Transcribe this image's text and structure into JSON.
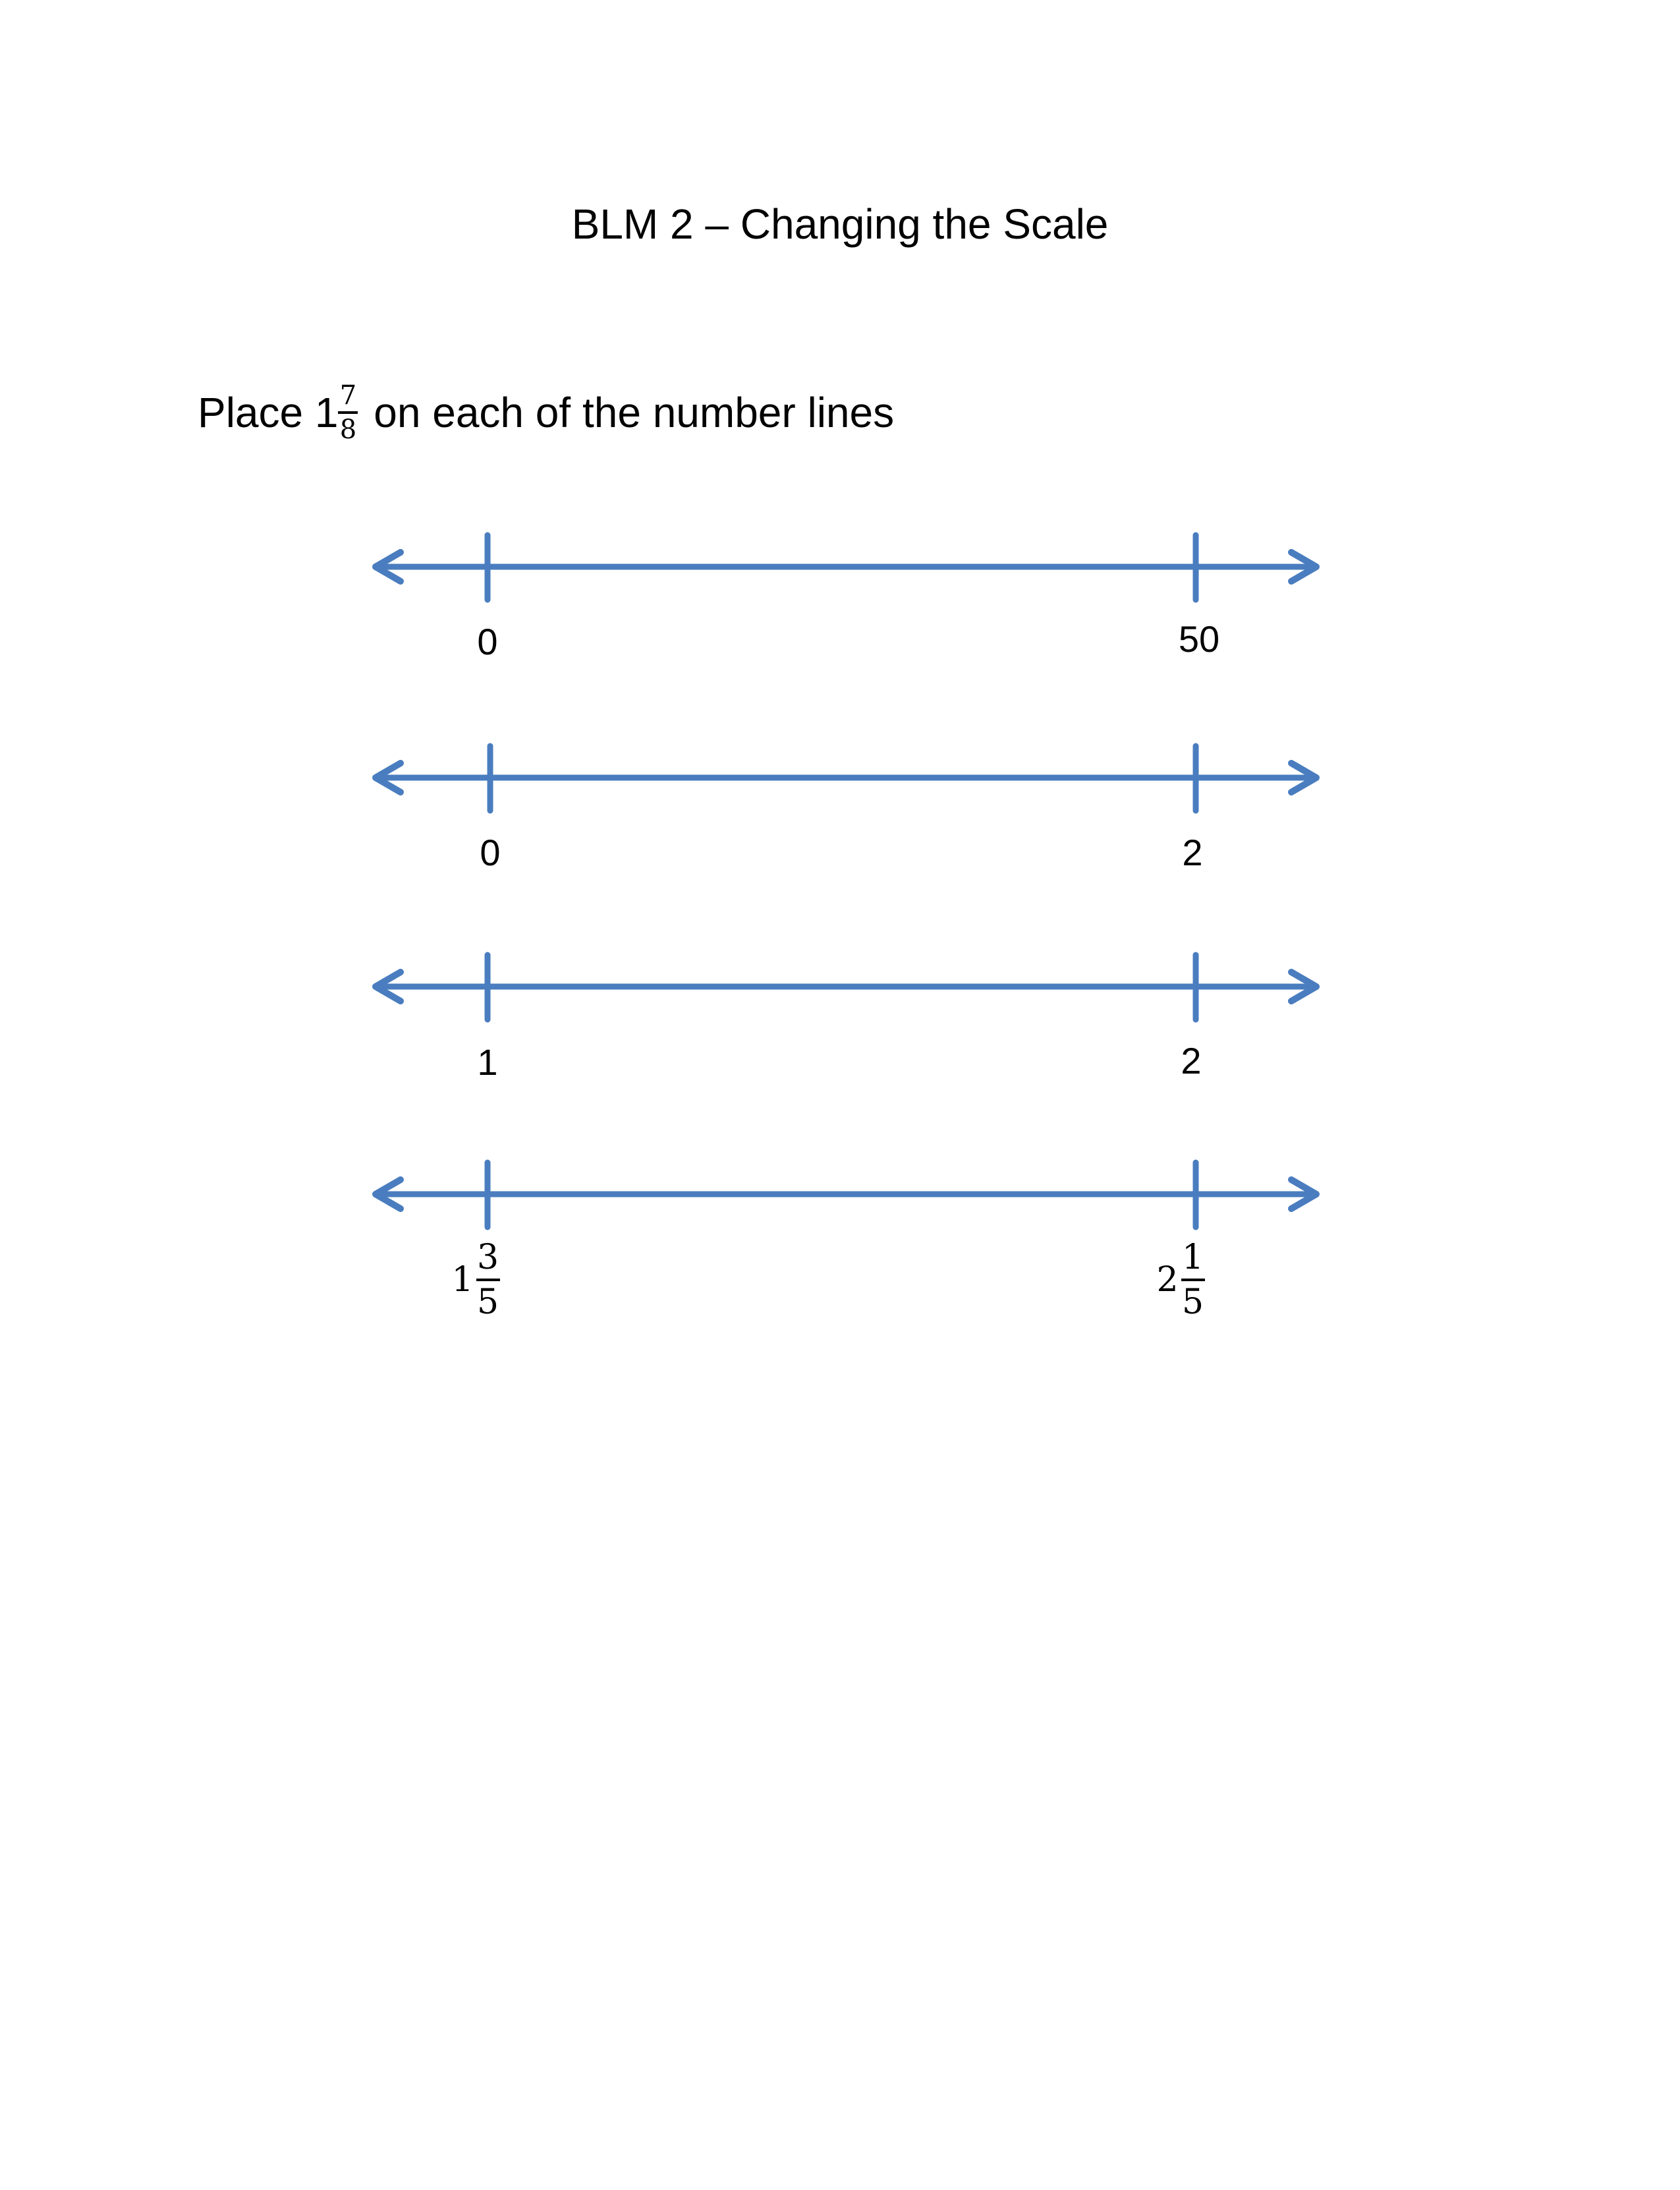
{
  "title": "BLM 2 – Changing the Scale",
  "instruction": {
    "prefix": "Place ",
    "whole": "1",
    "numerator": "7",
    "denominator": "8",
    "suffix": " on each of the number lines"
  },
  "number_lines": [
    {
      "left_label": "0",
      "right_label": "50"
    },
    {
      "left_label": "0",
      "right_label": "2"
    },
    {
      "left_label": "1",
      "right_label": "2"
    },
    {
      "left_label": {
        "whole": "1",
        "numerator": "3",
        "denominator": "5"
      },
      "right_label": {
        "whole": "2",
        "numerator": "1",
        "denominator": "5"
      }
    }
  ],
  "colors": {
    "line": "#4a7dbf",
    "text": "#000000"
  }
}
